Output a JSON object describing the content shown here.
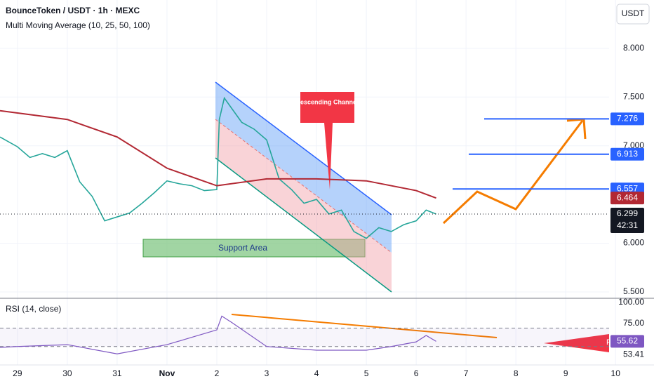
{
  "header": {
    "title": "BounceToken / USDT · 1h · MEXC",
    "indicator": "Multi Moving Average (10, 25, 50, 100)",
    "currency": "USDT"
  },
  "chart_data": [
    {
      "type": "line",
      "series": [
        {
          "color": "#26a69a",
          "x": [
            -0.35,
            0,
            0.25,
            0.5,
            0.75,
            1,
            1.25,
            1.5,
            1.75,
            2,
            2.25,
            2.5,
            2.75,
            3,
            3.25,
            3.5,
            3.75,
            4,
            4.05,
            4.15,
            4.5,
            4.75,
            5,
            5.25,
            5.5,
            5.75,
            6,
            6.25,
            6.5,
            6.75,
            7,
            7.25,
            7.5,
            7.75,
            8,
            8.2,
            8.4
          ],
          "values": [
            7.09,
            6.99,
            6.88,
            6.92,
            6.88,
            6.95,
            6.63,
            6.48,
            6.23,
            6.27,
            6.31,
            6.41,
            6.52,
            6.64,
            6.61,
            6.59,
            6.54,
            6.55,
            7.27,
            7.49,
            7.24,
            7.17,
            7.06,
            6.66,
            6.55,
            6.41,
            6.45,
            6.3,
            6.34,
            6.12,
            6.05,
            6.16,
            6.12,
            6.19,
            6.23,
            6.34,
            6.299
          ]
        },
        {
          "color": "#b22833",
          "x": [
            -0.35,
            1,
            2,
            3,
            4,
            5,
            6,
            7,
            8,
            8.4
          ],
          "values": [
            7.36,
            7.27,
            7.09,
            6.77,
            6.59,
            6.66,
            6.66,
            6.64,
            6.54,
            6.464
          ]
        }
      ],
      "xlim": [
        -0.35,
        11.87
      ],
      "xticks": [
        {
          "value": 0,
          "label": "29"
        },
        {
          "value": 1,
          "label": "30"
        },
        {
          "value": 2,
          "label": "31"
        },
        {
          "value": 3,
          "label": "Nov"
        },
        {
          "value": 4,
          "label": "2"
        },
        {
          "value": 5,
          "label": "3"
        },
        {
          "value": 6,
          "label": "4"
        },
        {
          "value": 7,
          "label": "5"
        },
        {
          "value": 8,
          "label": "6"
        },
        {
          "value": 9,
          "label": "7"
        },
        {
          "value": 10,
          "label": "8"
        },
        {
          "value": 11,
          "label": "9"
        },
        {
          "value": 12,
          "label": "10"
        }
      ],
      "ylim": [
        5.435,
        8.496
      ],
      "yticks": [
        {
          "value": 8,
          "label": "8.000"
        },
        {
          "value": 7.5,
          "label": "7.500"
        },
        {
          "value": 7,
          "label": "7.000"
        },
        {
          "value": 6,
          "label": "6.000"
        },
        {
          "value": 5.5,
          "label": "5.500"
        }
      ],
      "levels": [
        7.276,
        6.913,
        6.557
      ],
      "level_color": "#2962ff",
      "ma_last": 6.464,
      "last_price": 6.299,
      "countdown": "42:31",
      "annotations": [
        "Descending Channel",
        "Support Area"
      ]
    },
    {
      "type": "line",
      "title": "RSI (14, close)",
      "x": [
        -0.35,
        0,
        1,
        2,
        3,
        3.5,
        4,
        4.1,
        4.3,
        5,
        6,
        7,
        7.5,
        8,
        8.2,
        8.4
      ],
      "values": [
        49,
        50,
        52,
        42,
        52,
        60,
        68,
        83,
        76,
        50,
        46,
        46,
        50,
        55,
        62,
        55.62
      ],
      "color": "#7e57c2",
      "ylim": [
        30,
        102.3
      ],
      "yticks": [
        {
          "value": 100,
          "label": "100.00"
        },
        {
          "value": 75,
          "label": "75.00"
        }
      ],
      "bands": [
        70,
        50
      ],
      "last_values": [
        55.62,
        53.41
      ],
      "badge": "RS"
    }
  ]
}
